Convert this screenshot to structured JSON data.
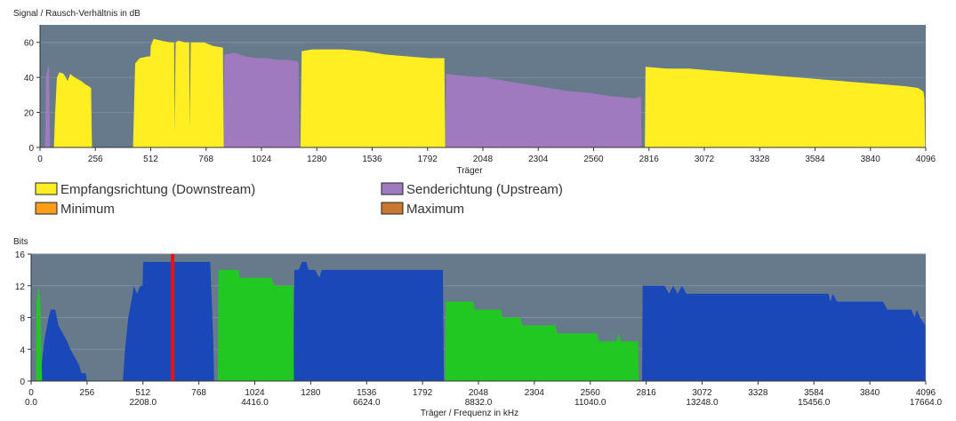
{
  "colors": {
    "plot_bg": "#667a8c",
    "grid": "#7d8ea0",
    "downstream": "#ffee22",
    "upstream": "#a07abf",
    "minimum": "#ff9d1a",
    "maximum": "#c87830",
    "bits_downstream": "#1a48b8",
    "bits_upstream": "#22c822",
    "marker": "#ee1111"
  },
  "snr_chart": {
    "title": "Signal / Rausch-Verhältnis in dB",
    "xlabel": "Träger",
    "legend": [
      {
        "label": "Empfangsrichtung (Downstream)",
        "color_key": "downstream"
      },
      {
        "label": "Senderichtung (Upstream)",
        "color_key": "upstream"
      },
      {
        "label": "Minimum",
        "color_key": "minimum"
      },
      {
        "label": "Maximum",
        "color_key": "maximum"
      }
    ]
  },
  "bits_chart": {
    "title": "Bits",
    "xlabel": "Träger / Frequenz in kHz"
  },
  "chart_data": [
    {
      "type": "area",
      "title": "Signal / Rausch-Verhältnis in dB",
      "xlabel": "Träger",
      "ylabel": "",
      "xlim": [
        0,
        4096
      ],
      "ylim": [
        0,
        70
      ],
      "x_ticks": [
        "0",
        "256",
        "512",
        "768",
        "1024",
        "1280",
        "1536",
        "1792",
        "2048",
        "2304",
        "2560",
        "2816",
        "3072",
        "3328",
        "3584",
        "3840",
        "4096"
      ],
      "y_ticks": [
        "0",
        "20",
        "40",
        "60"
      ],
      "grid": true,
      "legend_position": "bottom",
      "series": [
        {
          "name": "Empfangsrichtung (Downstream)",
          "color_key": "downstream",
          "segments": [
            [
              [
                64,
                0
              ],
              [
                70,
                20
              ],
              [
                78,
                40
              ],
              [
                90,
                43
              ],
              [
                110,
                42
              ],
              [
                128,
                38
              ],
              [
                140,
                42
              ],
              [
                160,
                40
              ],
              [
                190,
                38
              ],
              [
                210,
                36
              ],
              [
                225,
                35
              ],
              [
                236,
                34
              ],
              [
                240,
                0
              ]
            ],
            [
              [
                430,
                0
              ],
              [
                440,
                48
              ],
              [
                460,
                51
              ],
              [
                500,
                52
              ],
              [
                510,
                52
              ],
              [
                512,
                58
              ],
              [
                525,
                62
              ],
              [
                560,
                61
              ],
              [
                600,
                60
              ],
              [
                620,
                60
              ],
              [
                622,
                8
              ],
              [
                627,
                60
              ],
              [
                640,
                61
              ],
              [
                670,
                60
              ],
              [
                690,
                60
              ],
              [
                692,
                10
              ],
              [
                697,
                60
              ],
              [
                720,
                60
              ],
              [
                760,
                60
              ],
              [
                800,
                58
              ],
              [
                846,
                57
              ],
              [
                850,
                0
              ]
            ],
            [
              [
                1204,
                0
              ],
              [
                1210,
                55
              ],
              [
                1260,
                56
              ],
              [
                1300,
                56
              ],
              [
                1400,
                56
              ],
              [
                1500,
                55
              ],
              [
                1600,
                53
              ],
              [
                1700,
                52
              ],
              [
                1800,
                51
              ],
              [
                1870,
                51
              ],
              [
                1874,
                0
              ]
            ],
            [
              [
                2797,
                0
              ],
              [
                2800,
                46
              ],
              [
                2900,
                45
              ],
              [
                3000,
                45
              ],
              [
                3100,
                44
              ],
              [
                3200,
                43
              ],
              [
                3300,
                42
              ],
              [
                3400,
                41
              ],
              [
                3500,
                40
              ],
              [
                3600,
                39
              ],
              [
                3700,
                38
              ],
              [
                3800,
                37
              ],
              [
                3900,
                36
              ],
              [
                4000,
                35
              ],
              [
                4060,
                34
              ],
              [
                4085,
                32
              ],
              [
                4090,
                28
              ],
              [
                4093,
                0
              ]
            ]
          ]
        },
        {
          "name": "Senderichtung (Upstream)",
          "color_key": "upstream",
          "segments": [
            [
              [
                23,
                0
              ],
              [
                28,
                40
              ],
              [
                38,
                47
              ],
              [
                42,
                45
              ],
              [
                46,
                0
              ]
            ],
            [
              [
                851,
                0
              ],
              [
                852,
                53
              ],
              [
                900,
                54
              ],
              [
                950,
                52
              ],
              [
                1000,
                51
              ],
              [
                1050,
                51
              ],
              [
                1100,
                50
              ],
              [
                1150,
                50
              ],
              [
                1195,
                49
              ],
              [
                1200,
                0
              ]
            ],
            [
              [
                1875,
                0
              ],
              [
                1878,
                42
              ],
              [
                1950,
                41
              ],
              [
                2050,
                40
              ],
              [
                2150,
                38
              ],
              [
                2250,
                36
              ],
              [
                2350,
                34
              ],
              [
                2450,
                32
              ],
              [
                2550,
                31
              ],
              [
                2650,
                29
              ],
              [
                2750,
                28
              ],
              [
                2779,
                29
              ],
              [
                2782,
                0
              ]
            ]
          ]
        }
      ]
    },
    {
      "type": "area",
      "title": "Bits",
      "xlabel": "Träger / Frequenz in kHz",
      "ylabel": "",
      "xlim": [
        0,
        4096
      ],
      "ylim": [
        0,
        16
      ],
      "x_ticks": [
        "0",
        "256",
        "512",
        "768",
        "1024",
        "1280",
        "1536",
        "1792",
        "2048",
        "2304",
        "2560",
        "2816",
        "3072",
        "3328",
        "3584",
        "3840",
        "4096"
      ],
      "x_freq_ticks": [
        "0.0",
        "",
        "2208.0",
        "",
        "4416.0",
        "",
        "6624.0",
        "",
        "8832.0",
        "",
        "11040.0",
        "",
        "13248.0",
        "",
        "15456.0",
        "",
        "17664.0"
      ],
      "y_ticks": [
        "0",
        "4",
        "8",
        "12",
        "16"
      ],
      "grid": true,
      "marker_x": 648,
      "series": [
        {
          "name": "",
          "color_key": "bits_downstream",
          "segments": [
            [
              [
                40,
                0
              ],
              [
                60,
                5
              ],
              [
                80,
                8
              ],
              [
                90,
                9
              ],
              [
                110,
                9
              ],
              [
                125,
                7
              ],
              [
                145,
                6
              ],
              [
                165,
                5
              ],
              [
                180,
                4
              ],
              [
                200,
                3
              ],
              [
                220,
                2
              ],
              [
                230,
                1
              ],
              [
                250,
                1
              ],
              [
                255,
                0
              ]
            ],
            [
              [
                420,
                0
              ],
              [
                430,
                4
              ],
              [
                445,
                8
              ],
              [
                465,
                11
              ],
              [
                470,
                12
              ],
              [
                485,
                11
              ],
              [
                500,
                12
              ],
              [
                510,
                12
              ],
              [
                513,
                15
              ],
              [
                600,
                15
              ],
              [
                700,
                15
              ],
              [
                800,
                15
              ],
              [
                820,
                15
              ],
              [
                834,
                5
              ],
              [
                838,
                0
              ]
            ],
            [
              [
                1200,
                0
              ],
              [
                1205,
                14
              ],
              [
                1225,
                14
              ],
              [
                1240,
                15
              ],
              [
                1260,
                15
              ],
              [
                1270,
                14
              ],
              [
                1300,
                14
              ],
              [
                1320,
                13
              ],
              [
                1330,
                14
              ],
              [
                1400,
                14
              ],
              [
                1500,
                14
              ],
              [
                1600,
                14
              ],
              [
                1700,
                14
              ],
              [
                1800,
                14
              ],
              [
                1885,
                14
              ],
              [
                1890,
                0
              ]
            ],
            [
              [
                2797,
                0
              ],
              [
                2800,
                12
              ],
              [
                2900,
                12
              ],
              [
                2920,
                11
              ],
              [
                2940,
                12
              ],
              [
                2960,
                11
              ],
              [
                2980,
                12
              ],
              [
                3000,
                11
              ],
              [
                3100,
                11
              ],
              [
                3200,
                11
              ],
              [
                3300,
                11
              ],
              [
                3400,
                11
              ],
              [
                3500,
                11
              ],
              [
                3600,
                11
              ],
              [
                3650,
                11
              ],
              [
                3660,
                10
              ],
              [
                3670,
                11
              ],
              [
                3690,
                10
              ],
              [
                3800,
                10
              ],
              [
                3900,
                10
              ],
              [
                3920,
                9
              ],
              [
                4030,
                9
              ],
              [
                4045,
                8
              ],
              [
                4055,
                9
              ],
              [
                4070,
                8
              ],
              [
                4093,
                7
              ],
              [
                4094,
                0
              ]
            ]
          ]
        },
        {
          "name": "",
          "color_key": "bits_upstream",
          "segments": [
            [
              [
                23,
                0
              ],
              [
                25,
                10
              ],
              [
                35,
                12
              ],
              [
                42,
                10
              ],
              [
                50,
                0
              ]
            ],
            [
              [
                855,
                0
              ],
              [
                858,
                14
              ],
              [
                950,
                14
              ],
              [
                955,
                13
              ],
              [
                1100,
                13
              ],
              [
                1115,
                12
              ],
              [
                1200,
                12
              ],
              [
                1203,
                0
              ]
            ],
            [
              [
                1895,
                0
              ],
              [
                1898,
                10
              ],
              [
                2000,
                10
              ],
              [
                2025,
                10
              ],
              [
                2030,
                9
              ],
              [
                2150,
                9
              ],
              [
                2160,
                8
              ],
              [
                2240,
                8
              ],
              [
                2250,
                7
              ],
              [
                2400,
                7
              ],
              [
                2410,
                6
              ],
              [
                2590,
                6
              ],
              [
                2600,
                5
              ],
              [
                2680,
                5
              ],
              [
                2690,
                6
              ],
              [
                2700,
                5
              ],
              [
                2779,
                5
              ],
              [
                2782,
                0
              ]
            ]
          ]
        }
      ]
    }
  ]
}
